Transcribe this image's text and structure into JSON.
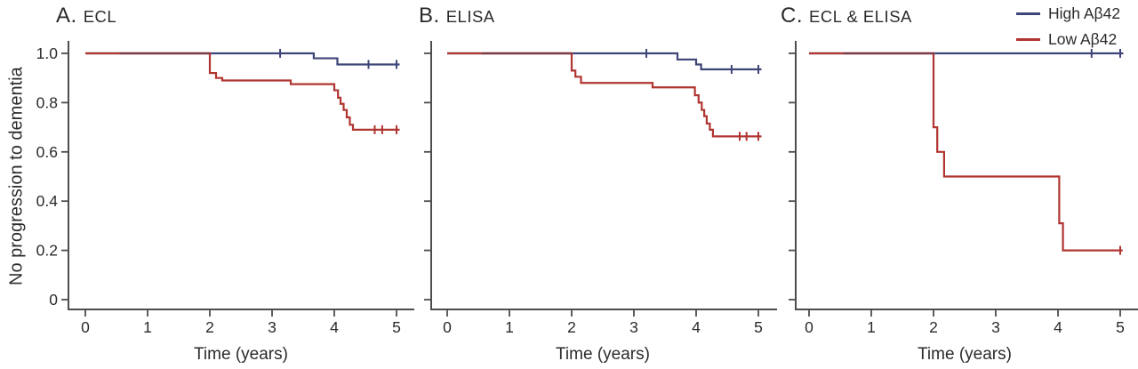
{
  "figure": {
    "background": "#ffffff",
    "ylabel": "No progression to dementia",
    "xlabel": "Time (years)",
    "colors": {
      "high": "#3e4578",
      "low": "#b03531",
      "overlap": "#7c3a44",
      "axis": "#4d4d4d",
      "text": "#2b2b2b"
    },
    "legend": {
      "position": "top-right",
      "entries": [
        {
          "label": "High Aβ42",
          "group": "high"
        },
        {
          "label": "Low Aβ42",
          "group": "low"
        }
      ]
    }
  },
  "chart_data": [
    {
      "type": "line",
      "subtype": "kaplan-meier-step",
      "key": "ecl",
      "panel_letter": "A.",
      "title": "ECL",
      "xlabel": "Time (years)",
      "ylabel": "No progression to dementia",
      "xlim": [
        0,
        5
      ],
      "ylim": [
        0,
        1.0
      ],
      "xticks": [
        0,
        1,
        2,
        3,
        4,
        5
      ],
      "yticks": [
        0,
        0.2,
        0.4,
        0.6,
        0.8,
        1.0
      ],
      "ytick_labels": [
        "0",
        "0.2",
        "0.4",
        "0.6",
        "0.8",
        "1.0"
      ],
      "show_ytick_labels": true,
      "grid": false,
      "series": [
        {
          "name": "High Aβ42",
          "group": "high",
          "steps": [
            [
              0,
              1.0
            ],
            [
              3.67,
              0.98
            ],
            [
              4.05,
              0.955
            ],
            [
              5.05,
              0.955
            ]
          ],
          "censors": [
            [
              3.13,
              1.0
            ],
            [
              4.55,
              0.955
            ],
            [
              5.0,
              0.955
            ]
          ]
        },
        {
          "name": "Low Aβ42",
          "group": "low",
          "steps": [
            [
              0,
              1.0
            ],
            [
              2.0,
              0.92
            ],
            [
              2.1,
              0.9
            ],
            [
              2.2,
              0.89
            ],
            [
              3.3,
              0.875
            ],
            [
              4.0,
              0.85
            ],
            [
              4.06,
              0.82
            ],
            [
              4.1,
              0.795
            ],
            [
              4.15,
              0.77
            ],
            [
              4.2,
              0.74
            ],
            [
              4.25,
              0.71
            ],
            [
              4.3,
              0.69
            ],
            [
              5.05,
              0.69
            ]
          ],
          "censors": [
            [
              4.65,
              0.69
            ],
            [
              4.77,
              0.69
            ],
            [
              5.0,
              0.69
            ]
          ]
        }
      ]
    },
    {
      "type": "line",
      "subtype": "kaplan-meier-step",
      "key": "elisa",
      "panel_letter": "B.",
      "title": "ELISA",
      "xlabel": "Time (years)",
      "ylabel": "No progression to dementia",
      "xlim": [
        0,
        5
      ],
      "ylim": [
        0,
        1.0
      ],
      "xticks": [
        0,
        1,
        2,
        3,
        4,
        5
      ],
      "yticks": [
        0,
        0.2,
        0.4,
        0.6,
        0.8,
        1.0
      ],
      "ytick_labels": [
        "0",
        "0.2",
        "0.4",
        "0.6",
        "0.8",
        "1.0"
      ],
      "show_ytick_labels": false,
      "grid": false,
      "series": [
        {
          "name": "High Aβ42",
          "group": "high",
          "steps": [
            [
              0,
              1.0
            ],
            [
              3.7,
              0.975
            ],
            [
              4.0,
              0.955
            ],
            [
              4.08,
              0.935
            ],
            [
              5.05,
              0.935
            ]
          ],
          "censors": [
            [
              3.2,
              1.0
            ],
            [
              4.57,
              0.935
            ],
            [
              5.0,
              0.935
            ]
          ]
        },
        {
          "name": "Low Aβ42",
          "group": "low",
          "steps": [
            [
              0,
              1.0
            ],
            [
              2.0,
              0.93
            ],
            [
              2.06,
              0.905
            ],
            [
              2.15,
              0.88
            ],
            [
              3.3,
              0.862
            ],
            [
              3.98,
              0.83
            ],
            [
              4.04,
              0.8
            ],
            [
              4.09,
              0.77
            ],
            [
              4.13,
              0.745
            ],
            [
              4.17,
              0.715
            ],
            [
              4.22,
              0.69
            ],
            [
              4.27,
              0.663
            ],
            [
              5.05,
              0.663
            ]
          ],
          "censors": [
            [
              4.7,
              0.663
            ],
            [
              4.81,
              0.663
            ],
            [
              5.0,
              0.663
            ]
          ]
        }
      ]
    },
    {
      "type": "line",
      "subtype": "kaplan-meier-step",
      "key": "ecl-and-elisa",
      "panel_letter": "C.",
      "title": "ECL & ELISA",
      "xlabel": "Time (years)",
      "ylabel": "No progression to dementia",
      "xlim": [
        0,
        5
      ],
      "ylim": [
        0,
        1.0
      ],
      "xticks": [
        0,
        1,
        2,
        3,
        4,
        5
      ],
      "yticks": [
        0,
        0.2,
        0.4,
        0.6,
        0.8,
        1.0
      ],
      "ytick_labels": [
        "0",
        "0.2",
        "0.4",
        "0.6",
        "0.8",
        "1.0"
      ],
      "show_ytick_labels": false,
      "grid": false,
      "series": [
        {
          "name": "High Aβ42",
          "group": "high",
          "steps": [
            [
              0,
              1.0
            ],
            [
              5.05,
              1.0
            ]
          ],
          "censors": [
            [
              4.54,
              1.0
            ],
            [
              5.0,
              1.0
            ]
          ]
        },
        {
          "name": "Low Aβ42",
          "group": "low",
          "steps": [
            [
              0,
              1.0
            ],
            [
              2.0,
              0.7
            ],
            [
              2.06,
              0.6
            ],
            [
              2.17,
              0.5
            ],
            [
              4.02,
              0.31
            ],
            [
              4.08,
              0.2
            ],
            [
              5.04,
              0.2
            ]
          ],
          "censors": [
            [
              5.0,
              0.2
            ]
          ]
        }
      ]
    }
  ]
}
